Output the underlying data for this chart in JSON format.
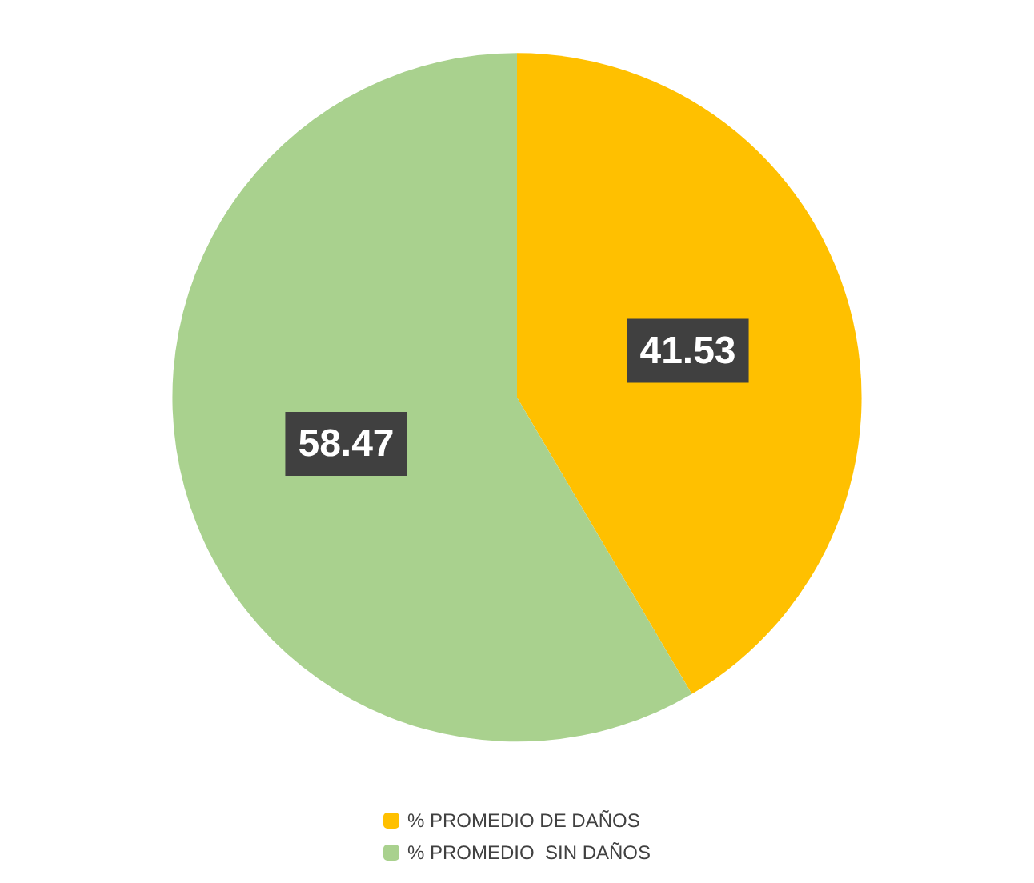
{
  "chart_data": {
    "type": "pie",
    "categories": [
      "% PROMEDIO DE DAÑOS",
      "% PROMEDIO  SIN DAÑOS"
    ],
    "values": [
      41.53,
      58.47
    ],
    "colors": [
      "#ffc000",
      "#a9d18e"
    ],
    "data_labels": true,
    "legend": "bottom"
  }
}
